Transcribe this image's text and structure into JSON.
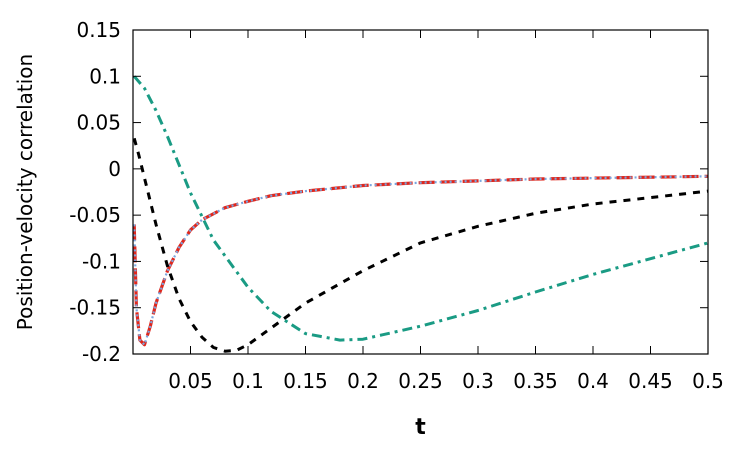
{
  "chart_data": {
    "type": "line",
    "title": "",
    "xlabel": "t",
    "ylabel": "Position-velocity correlation",
    "xlim": [
      0,
      0.5
    ],
    "ylim": [
      -0.2,
      0.15
    ],
    "grid": false,
    "x_ticks": [
      0.05,
      0.1,
      0.15,
      0.2,
      0.25,
      0.3,
      0.35,
      0.4,
      0.45,
      0.5
    ],
    "x_tick_labels": [
      "0.05",
      "0.1",
      "0.15",
      "0.2",
      "0.25",
      "0.3",
      "0.35",
      "0.4",
      "0.45",
      "0.5"
    ],
    "y_ticks": [
      0.15,
      0.1,
      0.05,
      0,
      -0.05,
      -0.1,
      -0.15,
      -0.2
    ],
    "y_tick_labels": [
      "0.15",
      "0.1",
      "0.05",
      "0",
      "-0.05",
      "-0.1",
      "-0.15",
      "-0.2"
    ],
    "series": [
      {
        "color": "#e0271c",
        "style": "long-dash",
        "x": [
          0.001,
          0.003,
          0.006,
          0.01,
          0.015,
          0.02,
          0.03,
          0.04,
          0.05,
          0.06,
          0.08,
          0.1,
          0.12,
          0.15,
          0.2,
          0.25,
          0.3,
          0.35,
          0.4,
          0.45,
          0.5
        ],
        "y": [
          -0.06,
          -0.15,
          -0.185,
          -0.19,
          -0.17,
          -0.145,
          -0.11,
          -0.085,
          -0.066,
          -0.055,
          -0.042,
          -0.035,
          -0.029,
          -0.024,
          -0.018,
          -0.015,
          -0.013,
          -0.011,
          -0.01,
          -0.009,
          -0.008
        ]
      },
      {
        "color": "#7aa6df",
        "style": "dotted",
        "x": [
          0.001,
          0.003,
          0.006,
          0.01,
          0.015,
          0.02,
          0.03,
          0.04,
          0.05,
          0.06,
          0.08,
          0.1,
          0.12,
          0.15,
          0.2,
          0.25,
          0.3,
          0.35,
          0.4,
          0.45,
          0.5
        ],
        "y": [
          -0.06,
          -0.15,
          -0.185,
          -0.19,
          -0.17,
          -0.145,
          -0.11,
          -0.085,
          -0.066,
          -0.055,
          -0.042,
          -0.035,
          -0.029,
          -0.024,
          -0.018,
          -0.015,
          -0.013,
          -0.011,
          -0.01,
          -0.009,
          -0.008
        ]
      },
      {
        "color": "#000000",
        "style": "short-dash",
        "x": [
          0.001,
          0.005,
          0.01,
          0.02,
          0.03,
          0.04,
          0.05,
          0.06,
          0.07,
          0.08,
          0.09,
          0.1,
          0.12,
          0.15,
          0.2,
          0.25,
          0.3,
          0.35,
          0.4,
          0.45,
          0.5
        ],
        "y": [
          0.033,
          0.015,
          -0.01,
          -0.06,
          -0.105,
          -0.14,
          -0.165,
          -0.182,
          -0.193,
          -0.197,
          -0.196,
          -0.19,
          -0.172,
          -0.145,
          -0.11,
          -0.08,
          -0.062,
          -0.048,
          -0.038,
          -0.031,
          -0.024
        ]
      },
      {
        "color": "#1a9b84",
        "style": "dash-dot",
        "x": [
          0.001,
          0.01,
          0.02,
          0.03,
          0.05,
          0.07,
          0.1,
          0.12,
          0.15,
          0.18,
          0.2,
          0.25,
          0.3,
          0.35,
          0.4,
          0.45,
          0.5
        ],
        "y": [
          0.1,
          0.087,
          0.063,
          0.035,
          -0.026,
          -0.077,
          -0.128,
          -0.154,
          -0.178,
          -0.185,
          -0.184,
          -0.17,
          -0.153,
          -0.133,
          -0.114,
          -0.097,
          -0.08
        ]
      }
    ]
  }
}
